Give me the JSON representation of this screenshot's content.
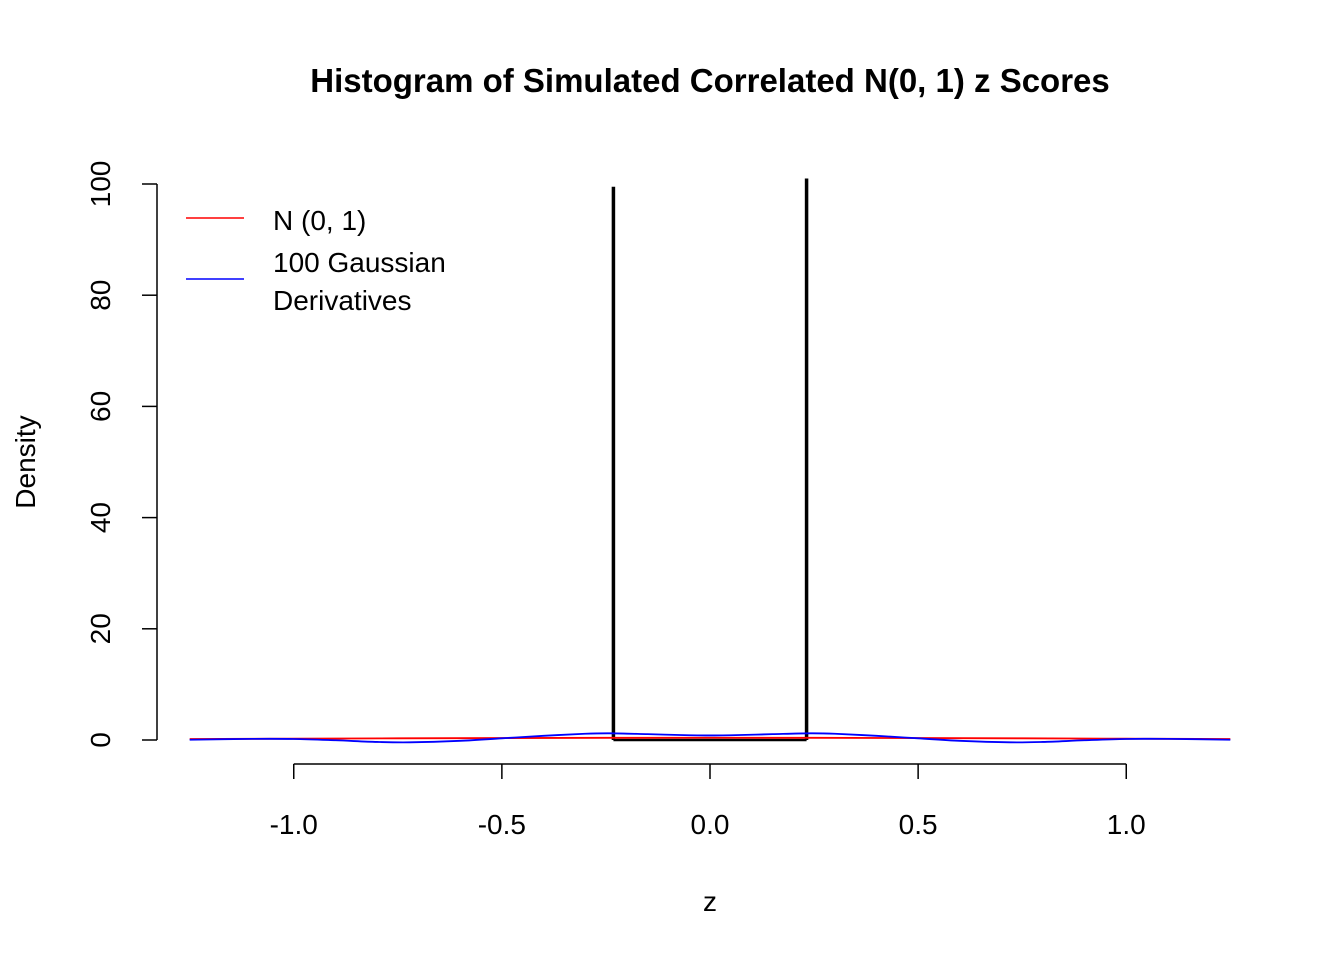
{
  "chart_data": {
    "type": "bar",
    "title": "Histogram of Simulated Correlated N(0, 1) z Scores",
    "xlabel": "z",
    "ylabel": "Density",
    "xlim": [
      -1.23,
      1.23
    ],
    "ylim": [
      0,
      100
    ],
    "x_ticks": [
      {
        "value": -1.0,
        "label": "-1.0"
      },
      {
        "value": -0.5,
        "label": "-0.5"
      },
      {
        "value": 0.0,
        "label": "0.0"
      },
      {
        "value": 0.5,
        "label": "0.5"
      },
      {
        "value": 1.0,
        "label": "1.0"
      }
    ],
    "y_ticks": [
      {
        "value": 0,
        "label": "0"
      },
      {
        "value": 20,
        "label": "20"
      },
      {
        "value": 40,
        "label": "40"
      },
      {
        "value": 60,
        "label": "60"
      },
      {
        "value": 80,
        "label": "80"
      },
      {
        "value": 100,
        "label": "100"
      }
    ],
    "histogram": {
      "bins": [
        {
          "x0": -0.232,
          "x1": 0.232,
          "density": 0.0
        }
      ],
      "spikes": [
        {
          "x": -0.232,
          "density": 99.5
        },
        {
          "x": 0.232,
          "density": 101.0
        }
      ],
      "color": "#000000"
    },
    "series": [
      {
        "name": "N (0, 1)",
        "color": "#ff0000",
        "x": [
          -1.25,
          -1.0,
          -0.75,
          -0.5,
          -0.25,
          0.0,
          0.25,
          0.5,
          0.75,
          1.0,
          1.25
        ],
        "y": [
          0.18,
          0.24,
          0.3,
          0.35,
          0.39,
          0.4,
          0.39,
          0.35,
          0.3,
          0.24,
          0.18
        ]
      },
      {
        "name": "100 Gaussian\nDerivatives",
        "color": "#0000ff",
        "x": [
          -1.25,
          -1.1,
          -1.0,
          -0.9,
          -0.8,
          -0.72,
          -0.6,
          -0.5,
          -0.4,
          -0.3,
          -0.24,
          -0.15,
          -0.05,
          0.0,
          0.05,
          0.15,
          0.24,
          0.3,
          0.4,
          0.5,
          0.6,
          0.72,
          0.8,
          0.9,
          1.0,
          1.1,
          1.25
        ],
        "y": [
          0.05,
          0.2,
          0.18,
          -0.05,
          -0.35,
          -0.42,
          -0.15,
          0.3,
          0.75,
          1.12,
          1.2,
          1.05,
          0.85,
          0.82,
          0.85,
          1.05,
          1.2,
          1.12,
          0.75,
          0.3,
          -0.15,
          -0.42,
          -0.35,
          -0.05,
          0.18,
          0.2,
          0.05
        ]
      }
    ],
    "legend": {
      "placement": "top-left",
      "entries": [
        {
          "label": "N (0, 1)",
          "color": "#ff0000"
        },
        {
          "label_lines": [
            "100 Gaussian",
            "Derivatives"
          ],
          "color": "#0000ff"
        }
      ]
    },
    "grid": false
  }
}
